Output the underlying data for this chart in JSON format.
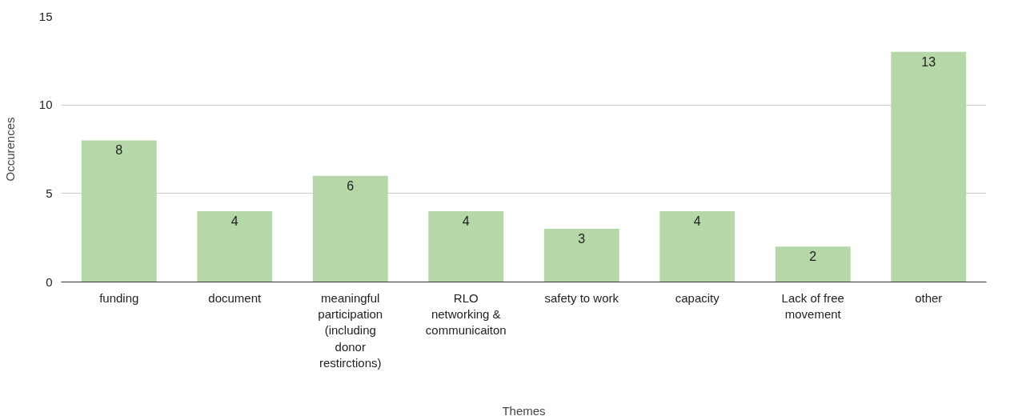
{
  "chart_data": {
    "type": "bar",
    "xlabel": "Themes",
    "ylabel": "Occurences",
    "categories": [
      "funding",
      "document",
      "meaningful participation (including donor restirctions)",
      "RLO networking & communicaiton",
      "safety to work",
      "capacity",
      "Lack of free movement",
      "other"
    ],
    "values": [
      8,
      4,
      6,
      4,
      3,
      4,
      2,
      13
    ],
    "color": "#b6d7a8",
    "ylim": [
      0,
      15
    ],
    "yticks": [
      0,
      5,
      10,
      15
    ],
    "grid": "y",
    "data_labels": true
  }
}
